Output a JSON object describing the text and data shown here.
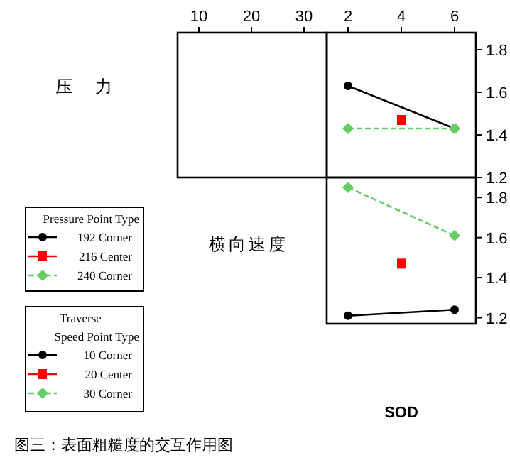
{
  "chart_data": [
    {
      "type": "other",
      "ylabel": "压　力",
      "annotations": [
        "10",
        "20",
        "30"
      ]
    },
    {
      "type": "line",
      "xlim": [
        1.2,
        6.8
      ],
      "xticks": [
        2,
        4,
        6
      ],
      "ylim": [
        1.2,
        1.88
      ],
      "yticks": [
        1.2,
        1.4,
        1.6,
        1.8
      ],
      "legend": "left",
      "legend_title": "Pressure Point Type",
      "series": [
        {
          "name": "192 Corner",
          "color": "#000000",
          "marker": "circle",
          "line_style": "solid",
          "x": [
            2,
            6
          ],
          "values": [
            1.63,
            1.43
          ]
        },
        {
          "name": "216 Center",
          "color": "#ff0000",
          "marker": "square",
          "line_style": "solid",
          "x": [
            4
          ],
          "values": [
            1.47
          ]
        },
        {
          "name": "240 Corner",
          "color": "#66cc66",
          "marker": "diamond",
          "line_style": "dashed",
          "x": [
            2,
            6
          ],
          "values": [
            1.43,
            1.43
          ]
        }
      ]
    },
    {
      "type": "line",
      "xlim": [
        1.2,
        6.8
      ],
      "xlabel": "SOD",
      "ylabel": "横向速度",
      "ylim": [
        1.17,
        1.9
      ],
      "yticks": [
        1.2,
        1.4,
        1.6,
        1.8
      ],
      "tick_labels": "y",
      "legend": "left",
      "legend_title": "Traverse\nSpeed Point Type",
      "annotations": [
        "图三：表面粗糙度的交互作用图"
      ],
      "series": [
        {
          "name": "10 Corner",
          "color": "#000000",
          "marker": "circle",
          "line_style": "solid",
          "x": [
            2,
            6
          ],
          "values": [
            1.21,
            1.24
          ]
        },
        {
          "name": "20 Center",
          "color": "#ff0000",
          "marker": "square",
          "line_style": "solid",
          "x": [
            4
          ],
          "values": [
            1.47
          ]
        },
        {
          "name": "30 Corner",
          "color": "#66cc66",
          "marker": "diamond",
          "line_style": "dashed",
          "x": [
            2,
            6
          ],
          "values": [
            1.85,
            1.61
          ]
        }
      ]
    }
  ]
}
